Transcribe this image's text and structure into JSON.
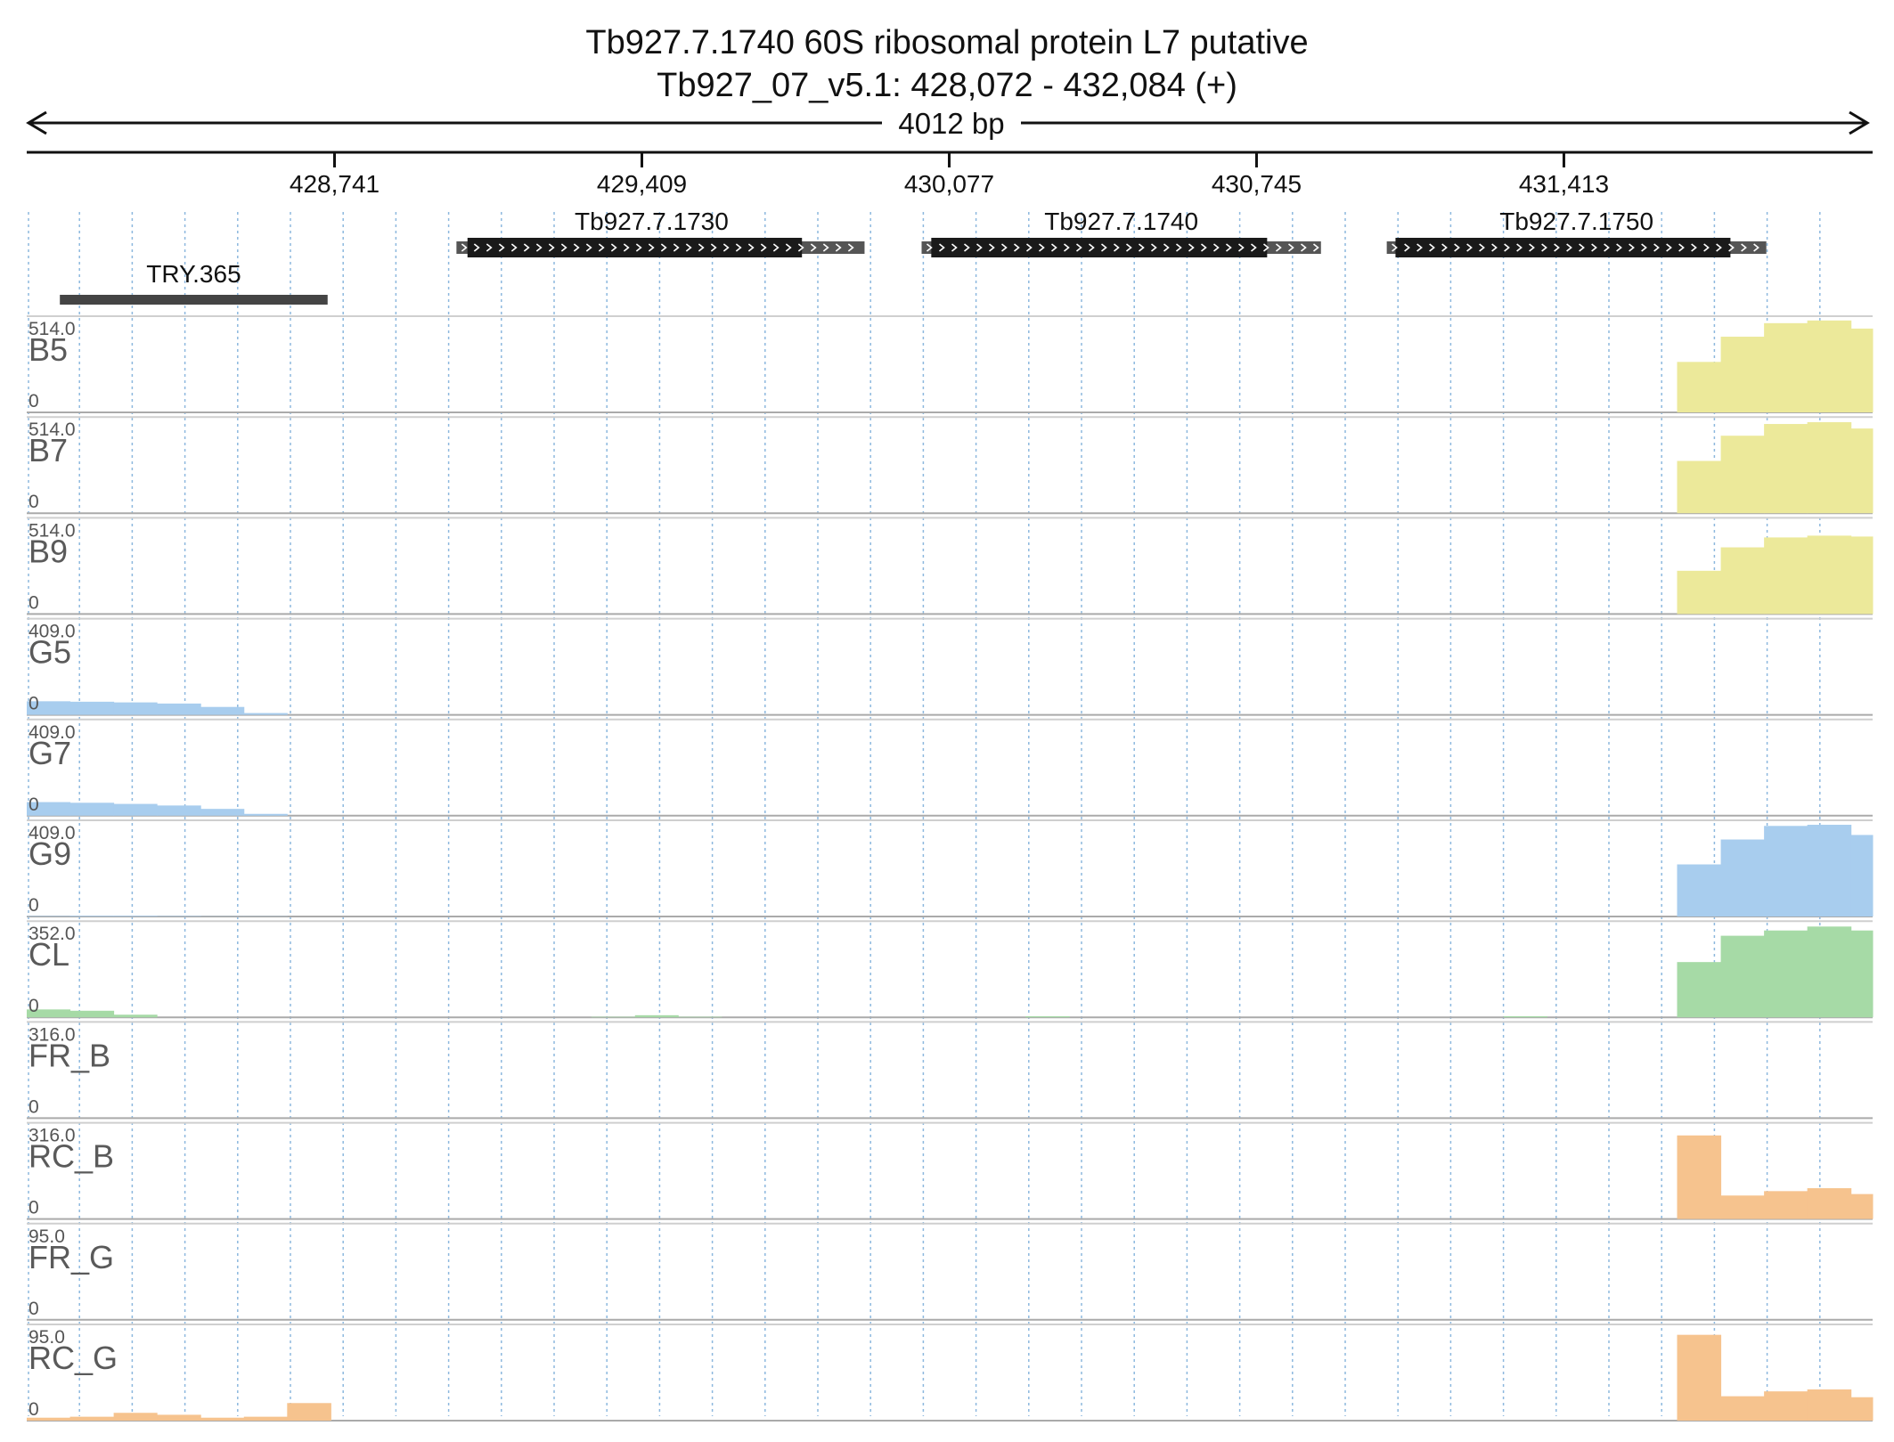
{
  "header": {
    "title": "Tb927.7.1740  60S ribosomal protein L7  putative",
    "locus": "Tb927_07_v5.1: 428,072 - 432,084 (+)",
    "span_label": "4012 bp"
  },
  "colors": {
    "yellow": "#ece99a",
    "blue": "#a8cdee",
    "green": "#a6daa6",
    "orange": "#f6c38e",
    "gene_body": "#1a1a1a",
    "gene_utr": "#555555",
    "gridline": "#8db8de"
  },
  "chart_data": {
    "type": "area",
    "region": {
      "chrom": "Tb927_07_v5.1",
      "start": 428072,
      "end": 432084,
      "strand": "+"
    },
    "ticks": [
      {
        "pos": 428741,
        "label": "428,741"
      },
      {
        "pos": 429409,
        "label": "429,409"
      },
      {
        "pos": 430077,
        "label": "430,077"
      },
      {
        "pos": 430745,
        "label": "430,745"
      },
      {
        "pos": 431413,
        "label": "431,413"
      }
    ],
    "genes": [
      {
        "name": "Tb927.7.1730",
        "start": 429006,
        "end": 429893,
        "cds_start": 429030,
        "cds_end": 429757,
        "strand": "+"
      },
      {
        "name": "Tb927.7.1740",
        "start": 430017,
        "end": 430885,
        "cds_start": 430038,
        "cds_end": 430768,
        "strand": "+"
      },
      {
        "name": "Tb927.7.1750",
        "start": 431028,
        "end": 431853,
        "cds_start": 431047,
        "cds_end": 431775,
        "strand": "+"
      }
    ],
    "regions": [
      {
        "name": "TRY.365",
        "start": 428144,
        "end": 428726
      }
    ],
    "x_bins": [
      428072,
      428166,
      428261,
      428355,
      428450,
      428544,
      428638,
      428733,
      428827,
      428922,
      429016,
      429110,
      429205,
      429299,
      429394,
      429488,
      429582,
      429677,
      429771,
      429866,
      429960,
      430054,
      430149,
      430243,
      430338,
      430432,
      430526,
      430621,
      430715,
      430810,
      430904,
      430998,
      431093,
      431187,
      431282,
      431376,
      431470,
      431565,
      431659,
      431754,
      431848,
      431942,
      432037,
      432084
    ],
    "tracks": [
      {
        "name": "B5",
        "max": "514.0",
        "min": "0",
        "max_value": 514,
        "color": "yellow",
        "values": [
          0,
          0,
          0,
          0,
          0,
          0,
          0,
          0,
          0,
          0,
          0,
          0,
          0,
          0,
          0,
          0,
          0,
          0,
          0,
          0,
          0,
          0,
          0,
          0,
          0,
          0,
          0,
          0,
          0,
          0,
          0,
          0,
          0,
          0,
          0,
          0,
          0,
          0,
          280,
          420,
          495,
          510,
          465,
          465
        ]
      },
      {
        "name": "B7",
        "max": "514.0",
        "min": "0",
        "max_value": 514,
        "color": "yellow",
        "values": [
          0,
          0,
          0,
          0,
          0,
          0,
          0,
          0,
          0,
          0,
          0,
          0,
          0,
          0,
          0,
          0,
          0,
          0,
          0,
          0,
          0,
          0,
          0,
          0,
          0,
          0,
          0,
          0,
          0,
          0,
          0,
          0,
          0,
          0,
          0,
          0,
          0,
          0,
          290,
          430,
          495,
          505,
          470,
          470
        ]
      },
      {
        "name": "B9",
        "max": "514.0",
        "min": "0",
        "max_value": 514,
        "color": "yellow",
        "values": [
          0,
          0,
          0,
          0,
          0,
          0,
          0,
          0,
          0,
          0,
          0,
          0,
          0,
          0,
          0,
          0,
          0,
          0,
          0,
          0,
          0,
          0,
          0,
          0,
          0,
          0,
          0,
          0,
          0,
          0,
          0,
          0,
          0,
          0,
          0,
          0,
          0,
          0,
          240,
          370,
          425,
          435,
          430,
          430
        ]
      },
      {
        "name": "G5",
        "max": "409.0",
        "min": "0",
        "max_value": 409,
        "color": "blue",
        "values": [
          60,
          58,
          55,
          50,
          35,
          8,
          0,
          0,
          0,
          0,
          0,
          0,
          0,
          0,
          0,
          0,
          0,
          0,
          0,
          0,
          0,
          0,
          0,
          0,
          0,
          0,
          0,
          0,
          0,
          0,
          0,
          0,
          0,
          0,
          0,
          0,
          0,
          0,
          0,
          0,
          0,
          0,
          0,
          0
        ]
      },
      {
        "name": "G7",
        "max": "409.0",
        "min": "0",
        "max_value": 409,
        "color": "blue",
        "values": [
          60,
          57,
          52,
          45,
          30,
          8,
          0,
          0,
          0,
          0,
          0,
          0,
          0,
          0,
          0,
          0,
          0,
          0,
          0,
          0,
          0,
          0,
          0,
          0,
          0,
          0,
          0,
          0,
          0,
          0,
          0,
          0,
          0,
          0,
          0,
          0,
          0,
          0,
          0,
          0,
          0,
          0,
          0,
          0
        ]
      },
      {
        "name": "G9",
        "max": "409.0",
        "min": "0",
        "max_value": 409,
        "color": "blue",
        "values": [
          2,
          3,
          3,
          2,
          1,
          1,
          0,
          0,
          0,
          0,
          0,
          0,
          0,
          0,
          0,
          0,
          0,
          0,
          0,
          0,
          0,
          0,
          0,
          0,
          0,
          0,
          0,
          0,
          0,
          0,
          0,
          0,
          0,
          0,
          0,
          0,
          0,
          0,
          230,
          340,
          400,
          405,
          360,
          355
        ]
      },
      {
        "name": "CL",
        "max": "352.0",
        "min": "0",
        "max_value": 352,
        "color": "green",
        "values": [
          30,
          25,
          10,
          0,
          0,
          0,
          0,
          0,
          0,
          0,
          0,
          0,
          0,
          2,
          8,
          2,
          0,
          0,
          0,
          0,
          0,
          0,
          0,
          4,
          0,
          0,
          0,
          0,
          0,
          0,
          0,
          0,
          0,
          0,
          4,
          0,
          0,
          0,
          210,
          310,
          330,
          345,
          330,
          330
        ]
      },
      {
        "name": "FR_B",
        "max": "316.0",
        "min": "0",
        "max_value": 316,
        "color": "orange",
        "values": [
          0,
          0,
          0,
          0,
          0,
          0,
          0,
          0,
          0,
          0,
          0,
          0,
          0,
          0,
          0,
          0,
          0,
          0,
          0,
          0,
          0,
          0,
          0,
          0,
          0,
          0,
          0,
          0,
          0,
          0,
          0,
          0,
          0,
          0,
          0,
          0,
          0,
          0,
          0,
          0,
          0,
          0,
          0,
          0
        ]
      },
      {
        "name": "RC_B",
        "max": "316.0",
        "min": "0",
        "max_value": 316,
        "color": "orange",
        "values": [
          0,
          0,
          0,
          0,
          0,
          0,
          0,
          0,
          0,
          0,
          0,
          0,
          0,
          0,
          0,
          0,
          0,
          0,
          0,
          0,
          0,
          0,
          0,
          0,
          0,
          0,
          0,
          0,
          0,
          0,
          0,
          0,
          0,
          0,
          0,
          0,
          0,
          0,
          285,
          80,
          95,
          105,
          85,
          80
        ]
      },
      {
        "name": "FR_G",
        "max": "95.0",
        "min": "0",
        "max_value": 95,
        "color": "orange",
        "values": [
          0,
          0,
          0,
          0,
          0,
          0,
          0,
          0,
          0,
          0,
          0,
          0,
          0,
          0,
          0,
          0,
          0,
          0,
          0,
          0,
          0,
          0,
          0,
          0,
          0,
          0,
          0,
          0,
          0,
          0,
          0,
          0,
          0,
          0,
          0,
          0,
          0,
          0,
          0,
          0,
          0,
          0,
          0,
          0
        ]
      },
      {
        "name": "RC_G",
        "max": "95.0",
        "min": "0",
        "max_value": 95,
        "color": "orange",
        "values": [
          3,
          4,
          8,
          6,
          3,
          4,
          18,
          0,
          0,
          0,
          0,
          0,
          0,
          0,
          0,
          0,
          0,
          0,
          0,
          0,
          0,
          0,
          0,
          0,
          0,
          0,
          0,
          0,
          0,
          0,
          0,
          0,
          0,
          0,
          0,
          0,
          0,
          0,
          88,
          25,
          30,
          32,
          24,
          24
        ]
      }
    ]
  }
}
